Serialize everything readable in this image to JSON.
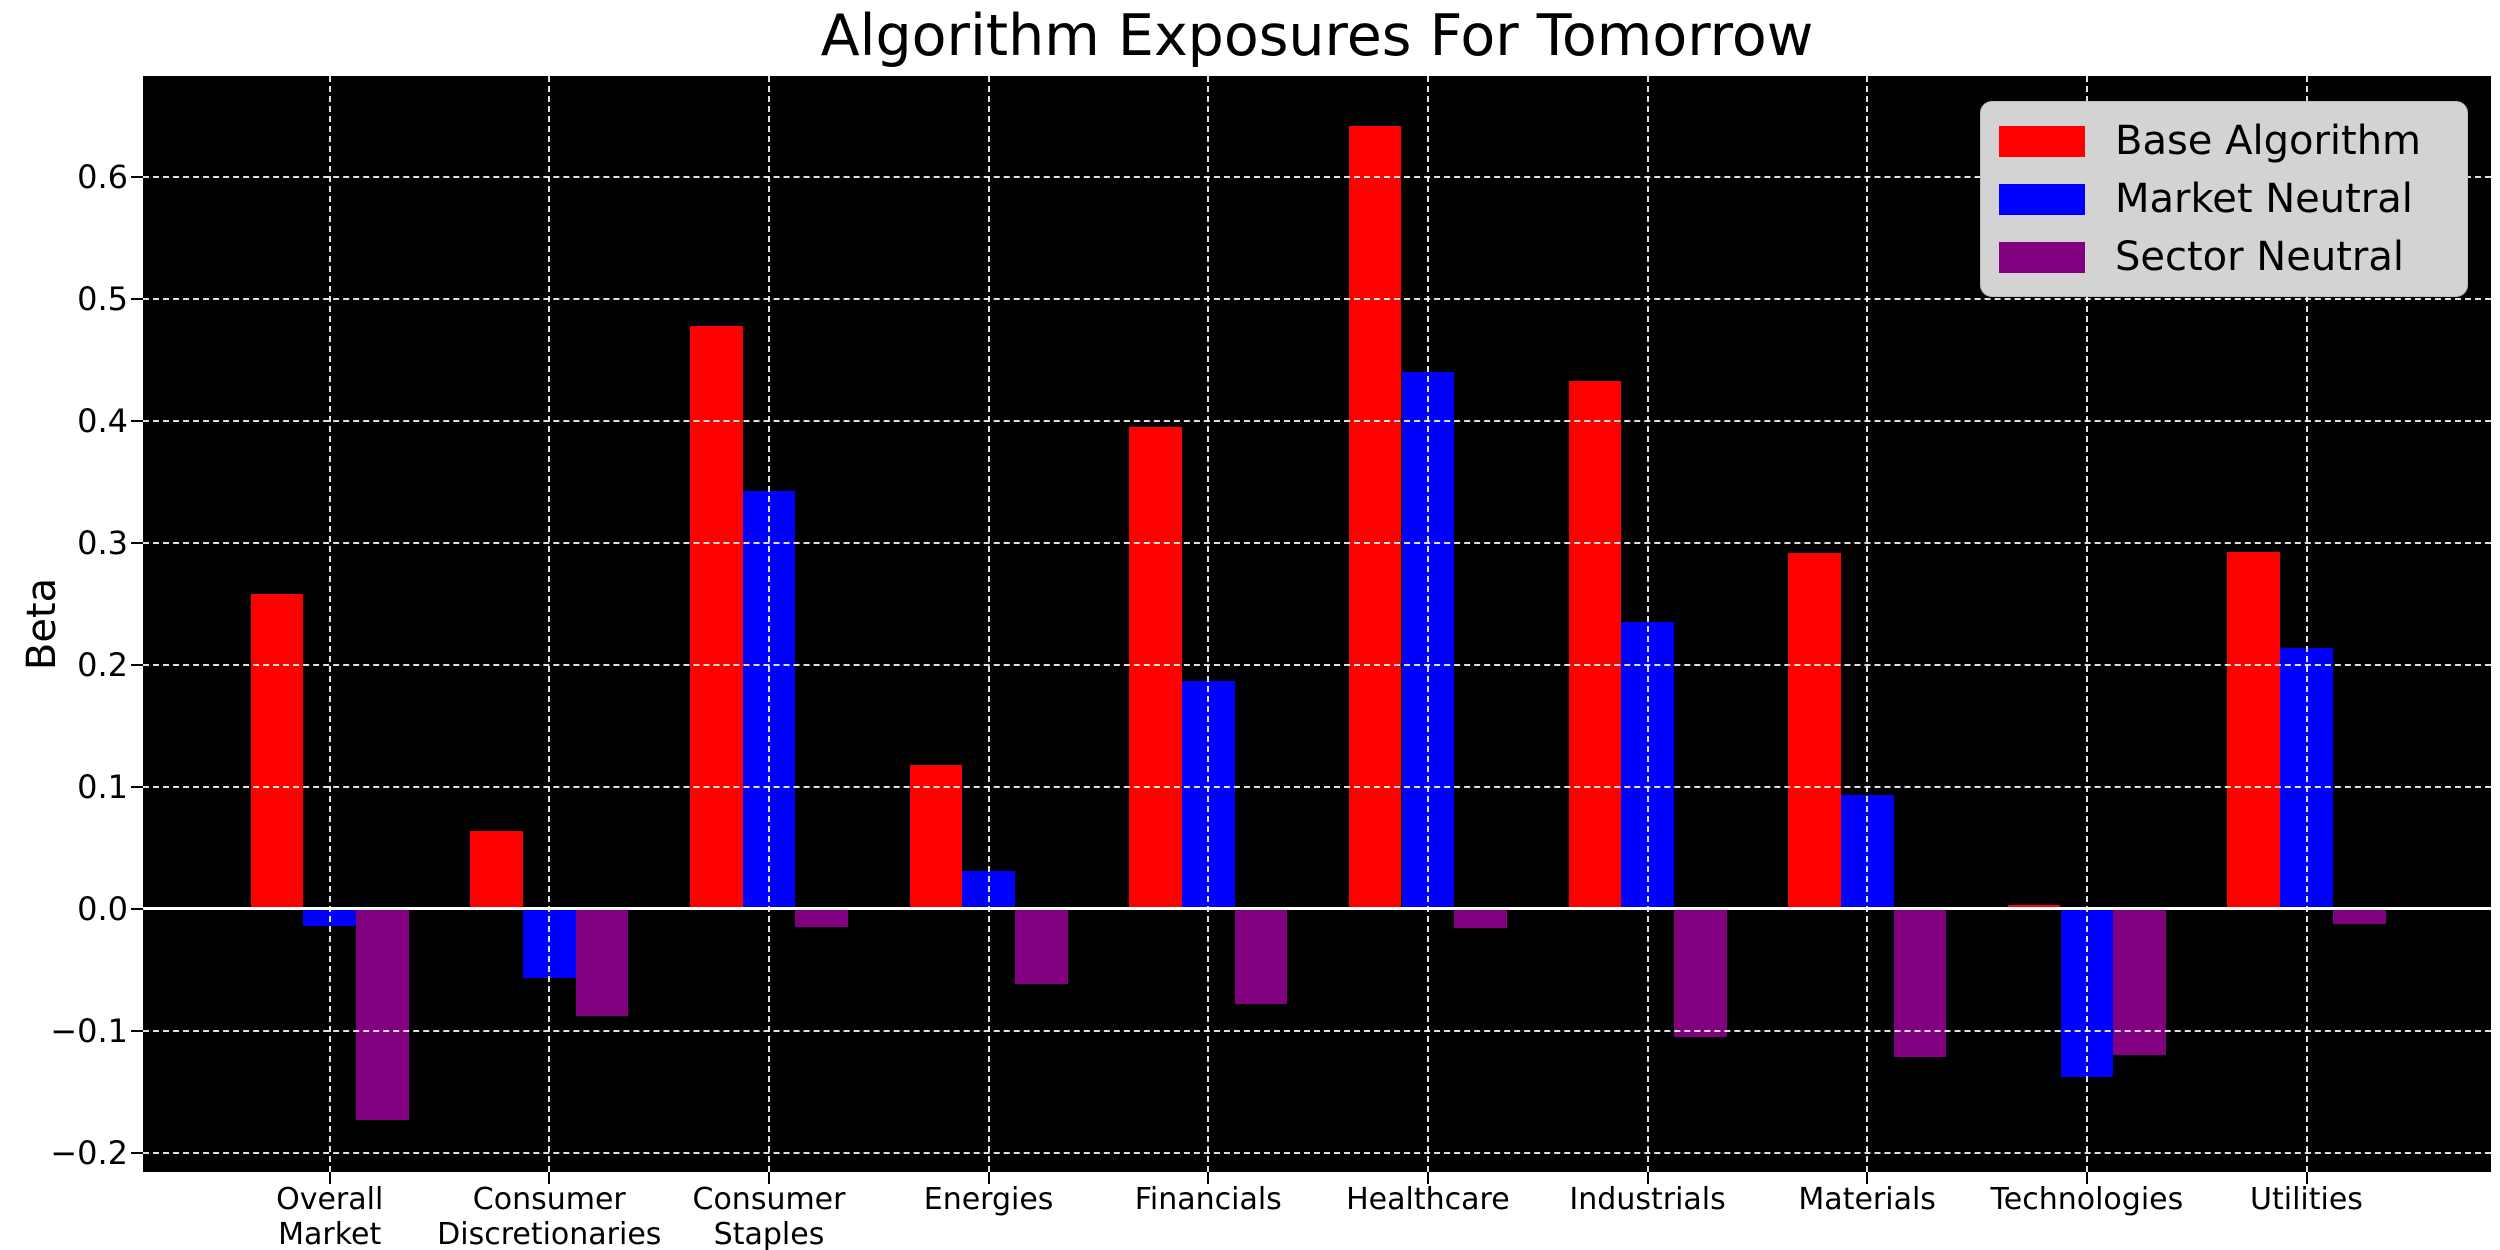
{
  "chart_data": {
    "type": "bar",
    "title": "Algorithm Exposures For Tomorrow",
    "ylabel": "Beta",
    "xlabel": "",
    "categories": [
      "Overall\nMarket",
      "Consumer\nDiscretionaries",
      "Consumer\nStaples",
      "Energies",
      "Financials",
      "Healthcare",
      "Industrials",
      "Materials",
      "Technologies",
      "Utilities"
    ],
    "series": [
      {
        "name": "Base Algorithm",
        "color": "#ff0000",
        "values": [
          0.258,
          0.064,
          0.478,
          0.118,
          0.395,
          0.642,
          0.433,
          0.292,
          0.003,
          0.293
        ]
      },
      {
        "name": "Market Neutral",
        "color": "#0000ff",
        "values": [
          -0.014,
          -0.057,
          0.343,
          0.031,
          0.187,
          0.44,
          0.235,
          0.093,
          -0.138,
          0.214
        ]
      },
      {
        "name": "Sector Neutral",
        "color": "#800080",
        "values": [
          -0.173,
          -0.088,
          -0.015,
          -0.062,
          -0.078,
          -0.016,
          -0.105,
          -0.122,
          -0.12,
          -0.013
        ]
      }
    ],
    "yticks": [
      -0.2,
      -0.1,
      0.0,
      0.1,
      0.2,
      0.3,
      0.4,
      0.5,
      0.6
    ],
    "ylim": [
      -0.216,
      0.683
    ],
    "grid": true,
    "grid_style": "dashed",
    "legend_position": "upper right",
    "colors": {
      "plot_background": "#000000",
      "figure_background": "#ffffff",
      "grid": "#ffffff",
      "zero_line": "#ffffff",
      "legend_background": "#d3d3d3",
      "text": "#000000"
    }
  }
}
